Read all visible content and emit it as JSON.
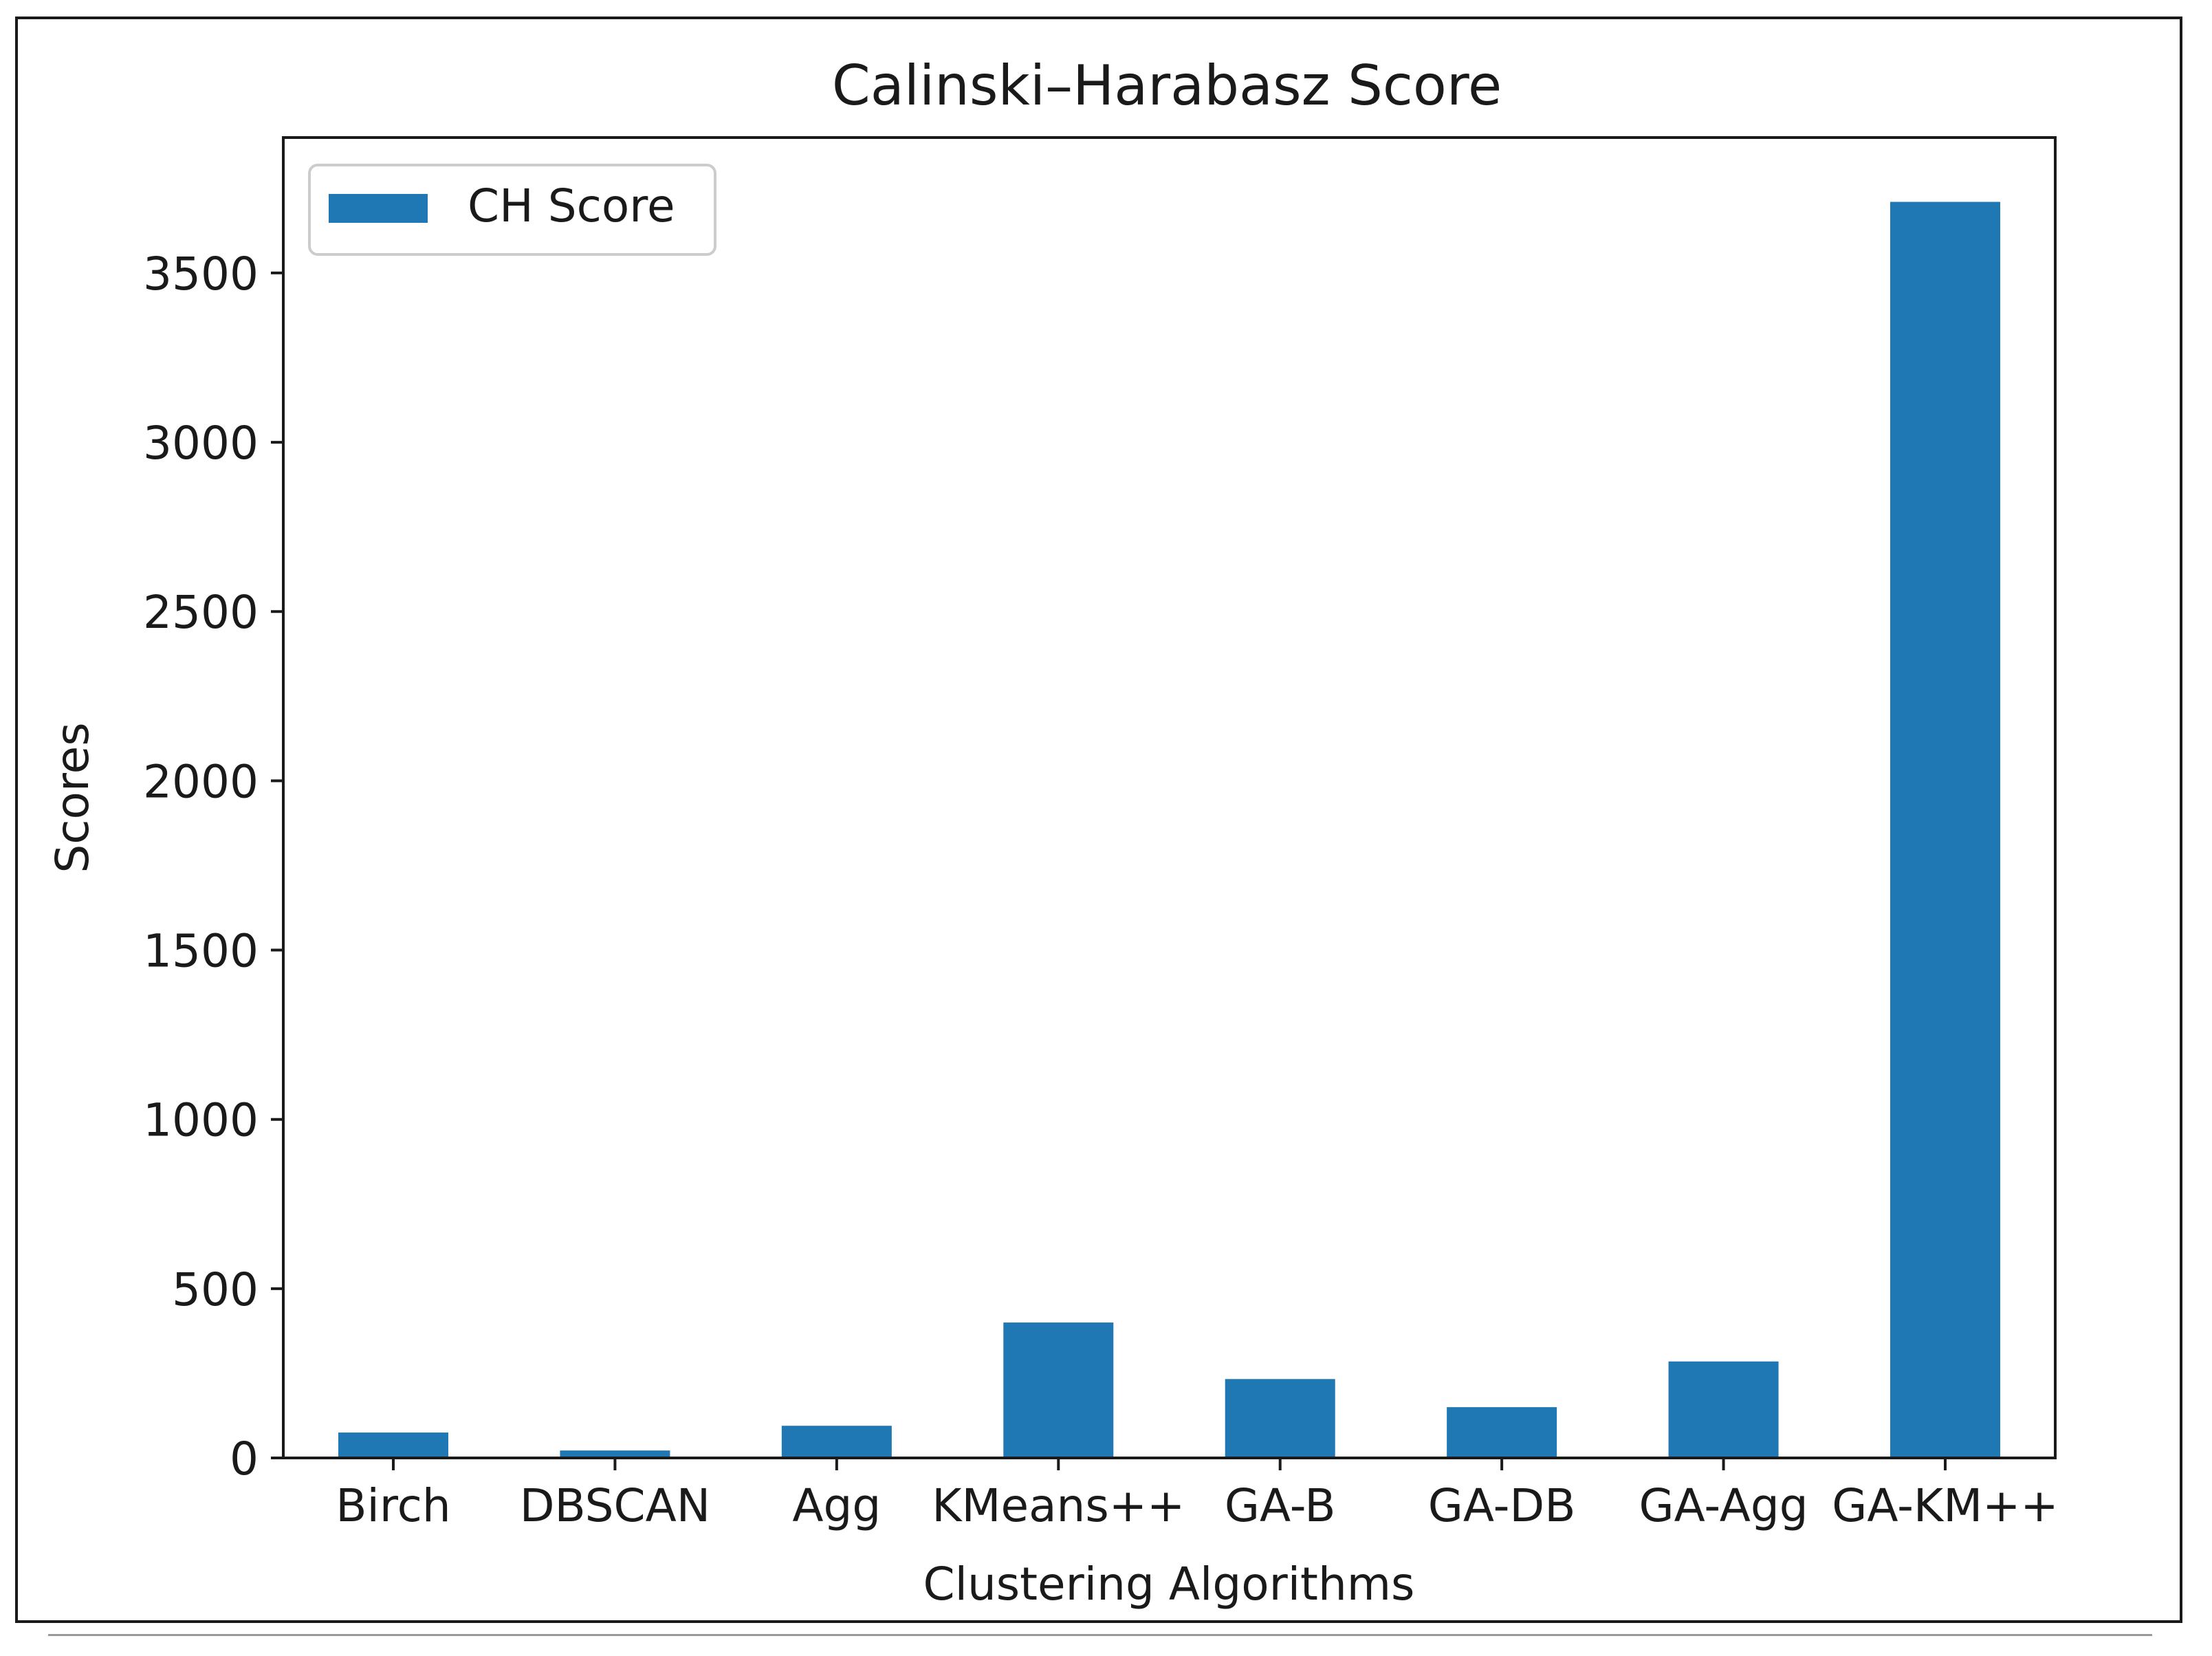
{
  "chart_data": {
    "type": "bar",
    "title": "Calinski–Harabasz Score",
    "xlabel": "Clustering Algorithms",
    "ylabel": "Scores",
    "categories": [
      "Birch",
      "DBSCAN",
      "Agg",
      "KMeans++",
      "GA-B",
      "GA-DB",
      "GA-Agg",
      "GA-KM++"
    ],
    "series": [
      {
        "name": "CH Score",
        "values": [
          75,
          22,
          95,
          400,
          233,
          150,
          285,
          3710
        ],
        "color": "#1f77b4"
      }
    ],
    "ylim": [
      0,
      3900
    ],
    "yticks": [
      0,
      500,
      1000,
      1500,
      2000,
      2500,
      3000,
      3500
    ],
    "grid": false,
    "legend": "top-left"
  }
}
